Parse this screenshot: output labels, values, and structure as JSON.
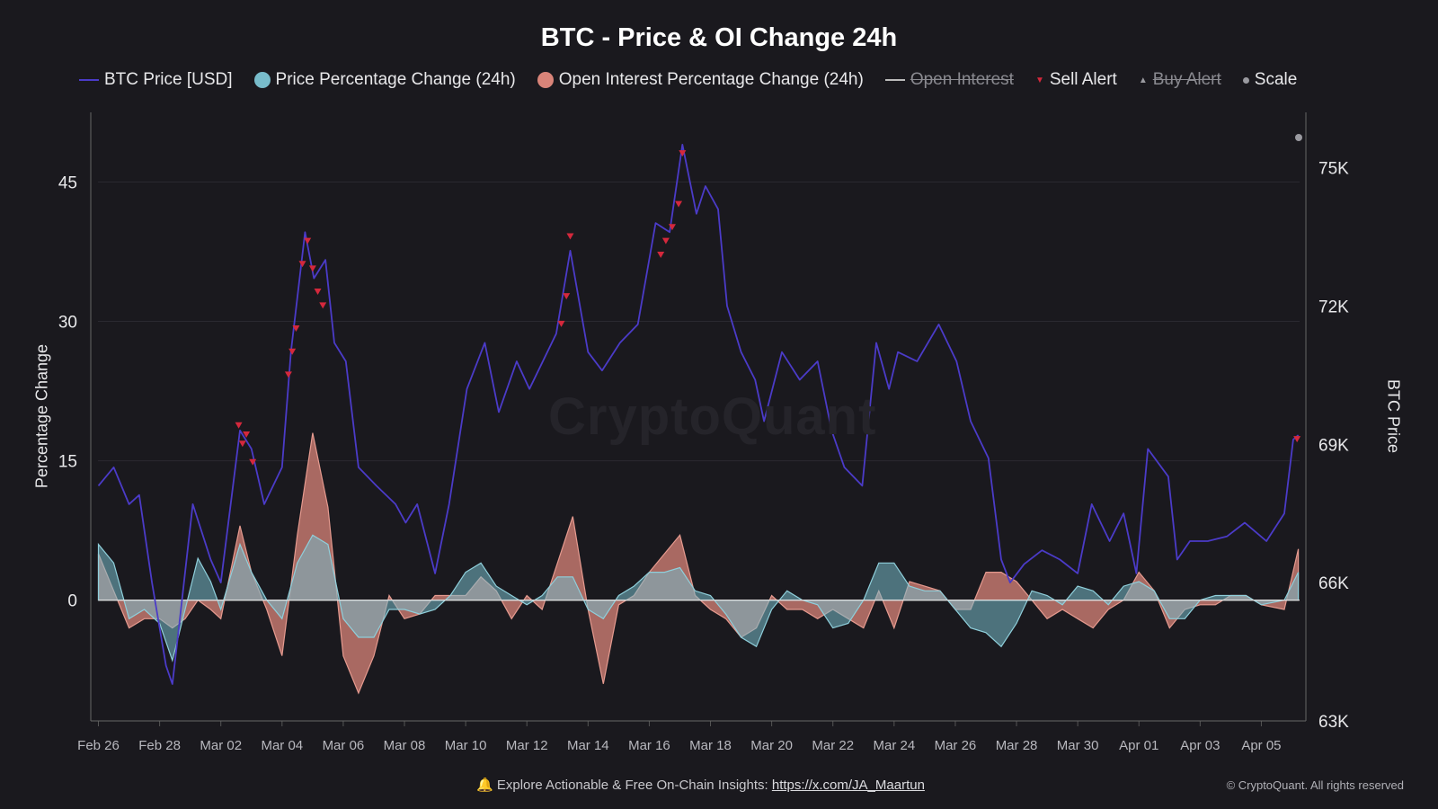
{
  "chart_data": {
    "type": "area",
    "title": "BTC - Price & OI Change 24h",
    "ylabel_left": "Percentage Change",
    "ylabel_right": "BTC Price",
    "xlim": [
      "Feb 25 18:00",
      "Apr 06 06:00"
    ],
    "ylim_left": [
      -13,
      52.5
    ],
    "ylim_right": [
      63,
      76.2
    ],
    "x_ticks": [
      "Feb 26",
      "Feb 28",
      "Mar 02",
      "Mar 04",
      "Mar 06",
      "Mar 08",
      "Mar 10",
      "Mar 12",
      "Mar 14",
      "Mar 16",
      "Mar 18",
      "Mar 20",
      "Mar 22",
      "Mar 24",
      "Mar 26",
      "Mar 28",
      "Mar 30",
      "Apr 01",
      "Apr 03",
      "Apr 05"
    ],
    "y_ticks_left": [
      0,
      15,
      30,
      45
    ],
    "y_ticks_right": [
      {
        "value": 63,
        "label": "63K"
      },
      {
        "value": 66,
        "label": "66K"
      },
      {
        "value": 69,
        "label": "69K"
      },
      {
        "value": 72,
        "label": "72K"
      },
      {
        "value": 75,
        "label": "75K"
      }
    ],
    "grid": true,
    "legend_position": "top",
    "watermark": "CryptoQuant",
    "colors": {
      "price": "#4b3bc8",
      "price_pct": "#78bccb",
      "oi_pct": "#d98479",
      "sell_alert": "#d4283c",
      "open_interest": "#bbbbbb",
      "scale": "#9a9aa0"
    },
    "legend": [
      {
        "label": "BTC Price [USD]",
        "kind": "line",
        "color": "#4b3bc8",
        "hidden": false
      },
      {
        "label": "Price Percentage Change (24h)",
        "kind": "dot",
        "color": "#78bccb",
        "hidden": false
      },
      {
        "label": "Open Interest Percentage Change (24h)",
        "kind": "dot",
        "color": "#d98479",
        "hidden": false
      },
      {
        "label": "Open Interest",
        "kind": "line",
        "color": "#bbbbbb",
        "hidden": true
      },
      {
        "label": "Sell Alert",
        "kind": "tri-down",
        "color": "#d4283c",
        "hidden": false
      },
      {
        "label": "Buy Alert",
        "kind": "tri-up",
        "color": "#9a9aa0",
        "hidden": true
      },
      {
        "label": "Scale",
        "kind": "sdot",
        "color": "#9a9aa0",
        "hidden": false
      }
    ],
    "series": [
      {
        "name": "BTC Price [USD]",
        "axis": "right",
        "unit": "K USD",
        "x": [
          "Feb 26 00:00",
          "Feb 26 12:00",
          "Feb 27 00:00",
          "Feb 27 08:00",
          "Feb 27 18:00",
          "Feb 28 05:00",
          "Feb 28 10:00",
          "Feb 28 15:00",
          "Mar 01 02:00",
          "Mar 01 16:00",
          "Mar 02 00:00",
          "Mar 02 15:00",
          "Mar 03 00:00",
          "Mar 03 10:00",
          "Mar 04 00:00",
          "Mar 04 07:00",
          "Mar 04 18:00",
          "Mar 05 01:00",
          "Mar 05 10:00",
          "Mar 05 17:00",
          "Mar 06 02:00",
          "Mar 06 12:00",
          "Mar 07 02:00",
          "Mar 07 17:00",
          "Mar 08 01:00",
          "Mar 08 10:00",
          "Mar 09 00:00",
          "Mar 09 11:00",
          "Mar 10 01:00",
          "Mar 10 15:00",
          "Mar 11 02:00",
          "Mar 11 16:00",
          "Mar 12 02:00",
          "Mar 12 23:00",
          "Mar 13 10:00",
          "Mar 14 00:00",
          "Mar 14 11:00",
          "Mar 15 01:00",
          "Mar 15 15:00",
          "Mar 16 05:00",
          "Mar 16 16:00",
          "Mar 17 02:00",
          "Mar 17 13:00",
          "Mar 17 20:00",
          "Mar 18 06:00",
          "Mar 18 13:00",
          "Mar 19 00:00",
          "Mar 19 11:00",
          "Mar 19 18:00",
          "Mar 20 08:00",
          "Mar 20 22:00",
          "Mar 21 12:00",
          "Mar 21 23:00",
          "Mar 22 09:00",
          "Mar 22 23:00",
          "Mar 23 10:00",
          "Mar 23 20:00",
          "Mar 24 03:00",
          "Mar 24 18:00",
          "Mar 25 11:00",
          "Mar 26 01:00",
          "Mar 26 12:00",
          "Mar 27 02:00",
          "Mar 27 12:00",
          "Mar 27 19:00",
          "Mar 28 06:00",
          "Mar 28 20:00",
          "Mar 29 10:00",
          "Mar 30 00:00",
          "Mar 30 11:00",
          "Mar 31 01:00",
          "Mar 31 12:00",
          "Mar 31 22:00",
          "Apr 01 07:00",
          "Apr 01 23:00",
          "Apr 02 06:00",
          "Apr 02 16:00",
          "Apr 03 06:00",
          "Apr 03 21:00",
          "Apr 04 11:00",
          "Apr 05 04:00",
          "Apr 05 18:00",
          "Apr 06 01:00",
          "Apr 06 05:00"
        ],
        "values": [
          68.1,
          68.5,
          67.7,
          67.9,
          66.0,
          64.2,
          63.8,
          65.0,
          67.7,
          66.5,
          66.0,
          69.3,
          68.9,
          67.7,
          68.5,
          71.0,
          73.6,
          72.6,
          73.0,
          71.2,
          70.8,
          68.5,
          68.1,
          67.7,
          67.3,
          67.7,
          66.2,
          67.7,
          70.2,
          71.2,
          69.7,
          70.8,
          70.2,
          71.4,
          73.2,
          71.0,
          70.6,
          71.2,
          71.6,
          73.8,
          73.6,
          75.5,
          74.0,
          74.6,
          74.1,
          72.0,
          71.0,
          70.4,
          69.5,
          71.0,
          70.4,
          70.8,
          69.3,
          68.5,
          68.1,
          71.2,
          70.2,
          71.0,
          70.8,
          71.6,
          70.8,
          69.5,
          68.7,
          66.5,
          66.0,
          66.4,
          66.7,
          66.5,
          66.2,
          67.7,
          66.9,
          67.5,
          66.2,
          68.9,
          68.3,
          66.5,
          66.9,
          66.9,
          67.0,
          67.3,
          66.9,
          67.5,
          69.1,
          69.2
        ]
      },
      {
        "name": "Price Percentage Change (24h)",
        "axis": "left",
        "unit": "%",
        "x": [
          "Feb 26 00:00",
          "Feb 26 12:00",
          "Feb 27 00:00",
          "Feb 27 12:00",
          "Feb 28 00:00",
          "Feb 28 10:00",
          "Feb 28 20:00",
          "Mar 01 06:00",
          "Mar 01 16:00",
          "Mar 02 00:00",
          "Mar 02 15:00",
          "Mar 03 00:00",
          "Mar 03 12:00",
          "Mar 04 00:00",
          "Mar 04 12:00",
          "Mar 05 00:00",
          "Mar 05 12:00",
          "Mar 06 00:00",
          "Mar 06 12:00",
          "Mar 07 00:00",
          "Mar 07 12:00",
          "Mar 08 00:00",
          "Mar 08 12:00",
          "Mar 09 00:00",
          "Mar 09 12:00",
          "Mar 10 00:00",
          "Mar 10 12:00",
          "Mar 11 00:00",
          "Mar 11 12:00",
          "Mar 12 00:00",
          "Mar 12 12:00",
          "Mar 13 00:00",
          "Mar 13 12:00",
          "Mar 14 00:00",
          "Mar 14 12:00",
          "Mar 15 00:00",
          "Mar 15 12:00",
          "Mar 16 00:00",
          "Mar 16 12:00",
          "Mar 17 00:00",
          "Mar 17 12:00",
          "Mar 18 00:00",
          "Mar 18 12:00",
          "Mar 19 00:00",
          "Mar 19 12:00",
          "Mar 20 00:00",
          "Mar 20 12:00",
          "Mar 21 00:00",
          "Mar 21 12:00",
          "Mar 22 00:00",
          "Mar 22 12:00",
          "Mar 23 00:00",
          "Mar 23 12:00",
          "Mar 24 00:00",
          "Mar 24 12:00",
          "Mar 25 00:00",
          "Mar 25 12:00",
          "Mar 26 00:00",
          "Mar 26 12:00",
          "Mar 27 00:00",
          "Mar 27 12:00",
          "Mar 28 00:00",
          "Mar 28 12:00",
          "Mar 29 00:00",
          "Mar 29 12:00",
          "Mar 30 00:00",
          "Mar 30 12:00",
          "Mar 31 00:00",
          "Mar 31 12:00",
          "Apr 01 00:00",
          "Apr 01 12:00",
          "Apr 02 00:00",
          "Apr 02 12:00",
          "Apr 03 00:00",
          "Apr 03 12:00",
          "Apr 04 00:00",
          "Apr 04 12:00",
          "Apr 05 00:00",
          "Apr 05 18:00",
          "Apr 06 05:00"
        ],
        "values": [
          6,
          4,
          -2,
          -1,
          -2.5,
          -6.5,
          -1,
          4.5,
          2,
          -1,
          6,
          3,
          0,
          -2,
          4,
          7,
          6,
          -2,
          -4,
          -4,
          -1,
          -1,
          -1.5,
          -1,
          0.5,
          3,
          4,
          1.5,
          0.5,
          -0.5,
          0.5,
          2.5,
          2.5,
          -1,
          -2,
          0.5,
          1.5,
          3,
          3,
          3.5,
          1,
          0.5,
          -1.5,
          -4,
          -5,
          -1,
          1,
          0,
          -0.5,
          -3,
          -2.5,
          0,
          4,
          4,
          1.5,
          1,
          1,
          -1,
          -3,
          -3.5,
          -5,
          -2.5,
          1,
          0.5,
          -0.5,
          1.5,
          1,
          -0.5,
          1.5,
          2,
          1,
          -2,
          -2,
          0,
          0.5,
          0.5,
          0.5,
          -0.5,
          0,
          3
        ]
      },
      {
        "name": "Open Interest Percentage Change (24h)",
        "axis": "left",
        "unit": "%",
        "x": [
          "Feb 26 00:00",
          "Feb 26 12:00",
          "Feb 27 00:00",
          "Feb 27 12:00",
          "Feb 28 00:00",
          "Feb 28 10:00",
          "Feb 28 20:00",
          "Mar 01 06:00",
          "Mar 01 16:00",
          "Mar 02 00:00",
          "Mar 02 15:00",
          "Mar 03 00:00",
          "Mar 03 12:00",
          "Mar 04 00:00",
          "Mar 04 12:00",
          "Mar 05 00:00",
          "Mar 05 12:00",
          "Mar 06 00:00",
          "Mar 06 12:00",
          "Mar 07 00:00",
          "Mar 07 12:00",
          "Mar 08 00:00",
          "Mar 08 12:00",
          "Mar 09 00:00",
          "Mar 09 12:00",
          "Mar 10 00:00",
          "Mar 10 12:00",
          "Mar 11 00:00",
          "Mar 11 12:00",
          "Mar 12 00:00",
          "Mar 12 12:00",
          "Mar 13 00:00",
          "Mar 13 12:00",
          "Mar 14 00:00",
          "Mar 14 12:00",
          "Mar 15 00:00",
          "Mar 15 12:00",
          "Mar 16 00:00",
          "Mar 16 12:00",
          "Mar 17 00:00",
          "Mar 17 12:00",
          "Mar 18 00:00",
          "Mar 18 12:00",
          "Mar 19 00:00",
          "Mar 19 12:00",
          "Mar 20 00:00",
          "Mar 20 12:00",
          "Mar 21 00:00",
          "Mar 21 12:00",
          "Mar 22 00:00",
          "Mar 22 12:00",
          "Mar 23 00:00",
          "Mar 23 12:00",
          "Mar 24 00:00",
          "Mar 24 12:00",
          "Mar 25 00:00",
          "Mar 25 12:00",
          "Mar 26 00:00",
          "Mar 26 12:00",
          "Mar 27 00:00",
          "Mar 27 12:00",
          "Mar 28 00:00",
          "Mar 28 12:00",
          "Mar 29 00:00",
          "Mar 29 12:00",
          "Mar 30 00:00",
          "Mar 30 12:00",
          "Mar 31 00:00",
          "Mar 31 12:00",
          "Apr 01 00:00",
          "Apr 01 12:00",
          "Apr 02 00:00",
          "Apr 02 12:00",
          "Apr 03 00:00",
          "Apr 03 12:00",
          "Apr 04 00:00",
          "Apr 04 12:00",
          "Apr 05 00:00",
          "Apr 05 18:00",
          "Apr 06 05:00"
        ],
        "values": [
          5,
          1,
          -3,
          -2,
          -2,
          -3,
          -2,
          0,
          -1,
          -2,
          8,
          3,
          -1,
          -6,
          7,
          18,
          10,
          -6,
          -10,
          -6,
          0.5,
          -2,
          -1.5,
          0.5,
          0.5,
          0.5,
          2.5,
          1,
          -2,
          0.5,
          -1,
          4,
          9,
          -1,
          -9,
          -0.5,
          0.5,
          3,
          5,
          7,
          0.5,
          -1,
          -2,
          -4,
          -3,
          0.5,
          -1,
          -1,
          -2,
          -1,
          -2,
          -3,
          1,
          -3,
          2,
          1.5,
          1,
          -1,
          -1,
          3,
          3,
          2,
          0,
          -2,
          -1,
          -2,
          -3,
          -1,
          0,
          3,
          1,
          -3,
          -1,
          -0.5,
          -0.5,
          0.5,
          0.5,
          -0.5,
          -1,
          5.5
        ]
      },
      {
        "name": "Sell Alert",
        "axis": "right",
        "kind": "markers",
        "x": [
          "Mar 02 14:00",
          "Mar 02 17:00",
          "Mar 02 20:00",
          "Mar 03 01:00",
          "Mar 04 05:00",
          "Mar 04 08:00",
          "Mar 04 11:00",
          "Mar 04 16:00",
          "Mar 04 20:00",
          "Mar 05 00:00",
          "Mar 05 04:00",
          "Mar 05 08:00",
          "Mar 13 03:00",
          "Mar 13 07:00",
          "Mar 13 10:00",
          "Mar 16 09:00",
          "Mar 16 13:00",
          "Mar 16 18:00",
          "Mar 16 23:00",
          "Mar 17 02:00",
          "Apr 06 04:00"
        ],
        "values": [
          69.4,
          69.0,
          69.2,
          68.6,
          70.5,
          71.0,
          71.5,
          72.9,
          73.4,
          72.8,
          72.3,
          72.0,
          71.6,
          72.2,
          73.5,
          73.1,
          73.4,
          73.7,
          74.2,
          75.3,
          69.1
        ]
      }
    ]
  },
  "footer": {
    "text": "Explore Actionable & Free On-Chain Insights:",
    "link": "https://x.com/JA_Maartun",
    "copyright": "© CryptoQuant. All rights reserved"
  }
}
